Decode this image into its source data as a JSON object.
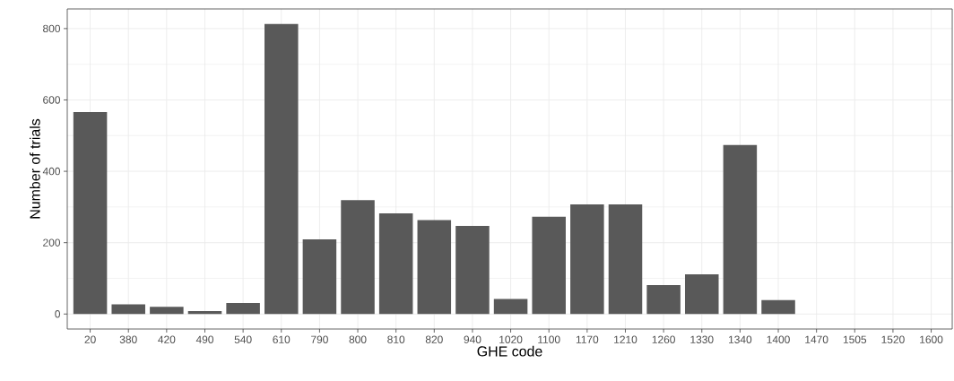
{
  "chart_data": {
    "type": "bar",
    "xlabel": "GHE code",
    "ylabel": "Number of trials",
    "categories": [
      "20",
      "380",
      "420",
      "490",
      "540",
      "610",
      "790",
      "800",
      "810",
      "820",
      "940",
      "1020",
      "1100",
      "1170",
      "1210",
      "1260",
      "1330",
      "1340",
      "1400",
      "1470",
      "1505",
      "1520",
      "1600"
    ],
    "values": [
      566,
      27,
      20,
      8,
      31,
      813,
      209,
      319,
      282,
      263,
      247,
      42,
      273,
      307,
      307,
      81,
      111,
      474,
      39,
      0,
      0,
      0,
      0
    ],
    "color": "#595959",
    "ylim": [
      -42,
      855
    ],
    "yticks": [
      0,
      200,
      400,
      600,
      800
    ],
    "grid": true
  }
}
